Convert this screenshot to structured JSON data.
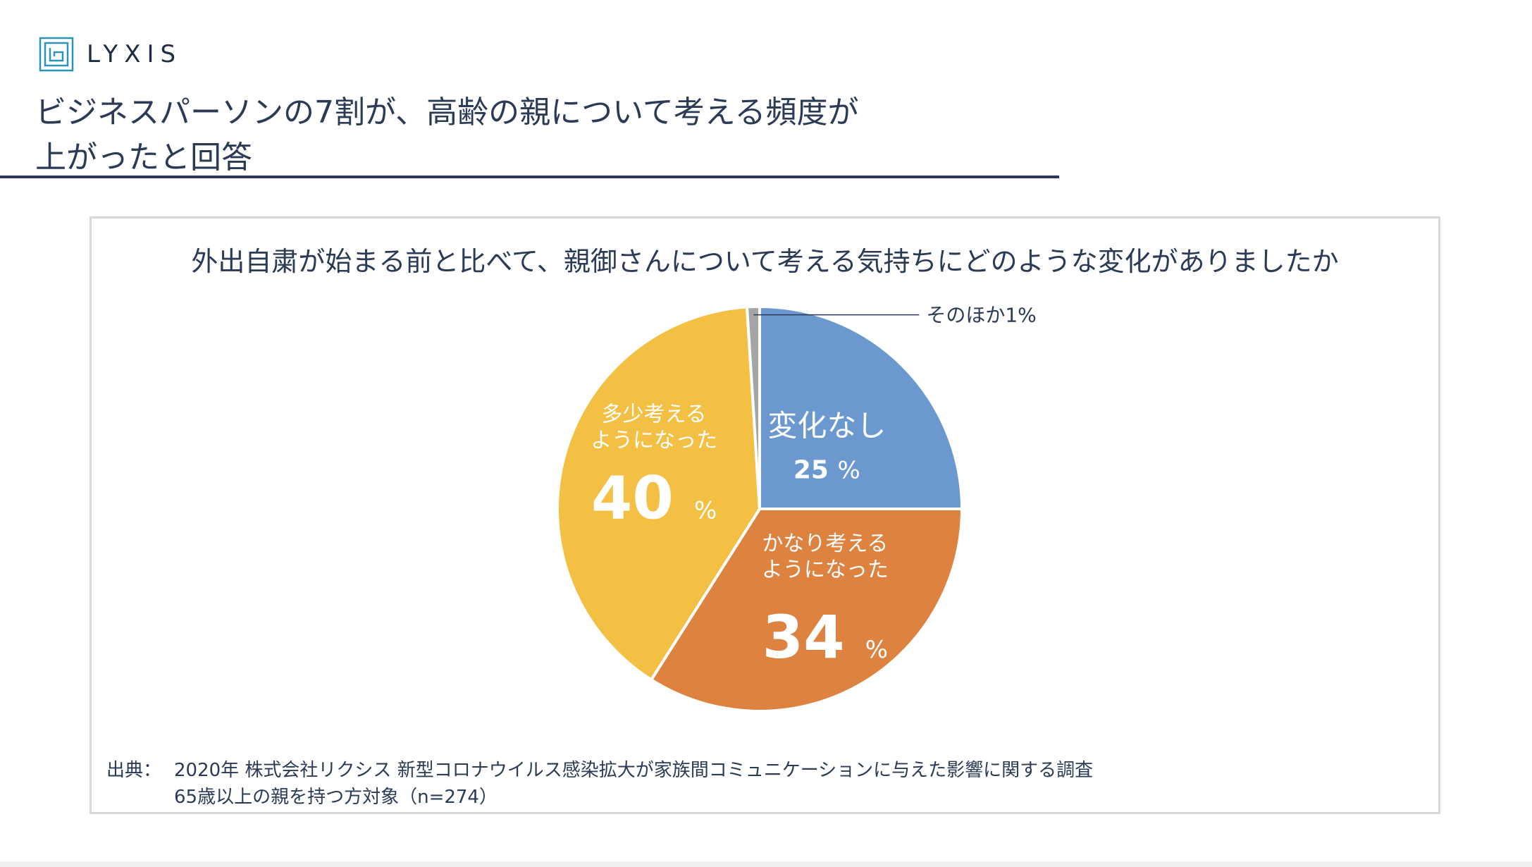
{
  "brand": {
    "name": "LYXIS"
  },
  "title": {
    "line1": "ビジネスパーソンの7割が、高齢の親について考える頻度が",
    "line2": "上がったと回答"
  },
  "chart_data": {
    "type": "pie",
    "title": "外出自粛が始まる前と比べて、親御さんについて考える気持ちにどのような変化がありましたか",
    "slices": [
      {
        "label": "変化なし",
        "value": 25,
        "display": "25",
        "color": "#6a98cf"
      },
      {
        "label": "かなり考えるようになった",
        "label_lines": [
          "かなり考える",
          "ようになった"
        ],
        "value": 34,
        "display": "34",
        "color": "#de8240"
      },
      {
        "label": "多少考えるようになった",
        "label_lines": [
          "多少考える",
          "ようになった"
        ],
        "value": 40,
        "display": "40",
        "color": "#f4c044"
      },
      {
        "label": "そのほか",
        "value": 1,
        "display": "そのほか1%",
        "color": "#a5a5a5"
      }
    ],
    "percent_sign": "%",
    "start": "12 o'clock",
    "direction": "clockwise"
  },
  "source": {
    "label": "出典：",
    "line1": "2020年 株式会社リクシス 新型コロナウイルス感染拡大が家族間コミュニケーションに与えた影響に関する調査",
    "line2": "65歳以上の親を持つ方対象（n=274）"
  },
  "colors": {
    "accent": "#2b3a55",
    "logo": "#2d94b8"
  }
}
